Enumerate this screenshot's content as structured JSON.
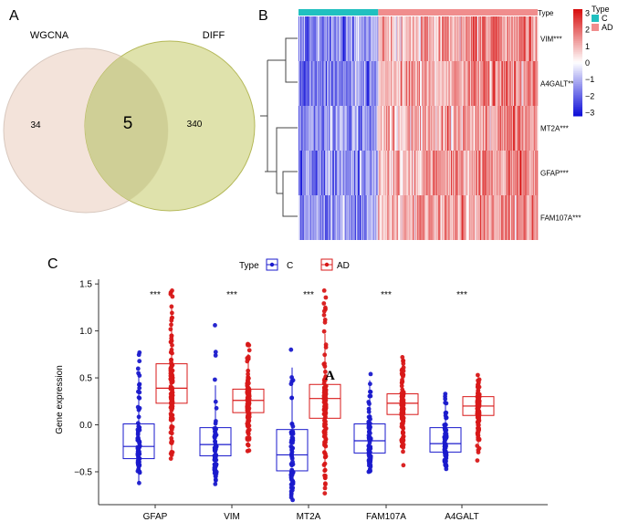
{
  "panels": {
    "a_label": "A",
    "b_label": "B",
    "c_label": "C",
    "annotation": "A"
  },
  "venn": {
    "left_set": "WGCNA",
    "right_set": "DIFF",
    "left_only": "34",
    "intersection": "5",
    "right_only": "340",
    "left_color": "#f3e3da",
    "right_color": "#d9dd9e",
    "overlap_color": "#cfcf96"
  },
  "heatmap": {
    "type_row_label": "Type",
    "genes": [
      "VIM***",
      "A4GALT***",
      "MT2A***",
      "GFAP***",
      "FAM107A***"
    ],
    "n_control": 90,
    "n_ad": 180,
    "type_colors": {
      "C": "#20c0c0",
      "AD": "#f08d8d"
    },
    "colorbar": {
      "min": -3,
      "max": 3,
      "ticks": [
        "3",
        "2",
        "1",
        "0",
        "−1",
        "−2",
        "−3"
      ],
      "low_color": "#1010d8",
      "mid_color": "#ffffff",
      "high_color": "#d81010"
    },
    "legend_title": "Type",
    "legend_items": [
      "C",
      "AD"
    ]
  },
  "chart_data": {
    "type": "box",
    "title": "",
    "xlabel": "",
    "ylabel": "Gene expression",
    "ylim": [
      -0.85,
      1.55
    ],
    "yticks": [
      -0.5,
      0.0,
      0.5,
      1.0,
      1.5
    ],
    "ytick_labels": [
      "−0.5",
      "0.0",
      "0.5",
      "1.0",
      "1.5"
    ],
    "categories": [
      "GFAP",
      "VIM",
      "MT2A",
      "FAM107A",
      "A4GALT"
    ],
    "significance": [
      "***",
      "***",
      "***",
      "***",
      "***"
    ],
    "legend_title": "Type",
    "series": [
      {
        "name": "C",
        "color": "#1a1acc",
        "boxes": [
          {
            "q1": -0.36,
            "median": -0.23,
            "q3": 0.01,
            "low": -0.62,
            "high": 0.77
          },
          {
            "q1": -0.33,
            "median": -0.21,
            "q3": -0.03,
            "low": -0.63,
            "high": 1.06
          },
          {
            "q1": -0.49,
            "median": -0.32,
            "q3": -0.05,
            "low": -0.8,
            "high": 0.8
          },
          {
            "q1": -0.3,
            "median": -0.17,
            "q3": 0.01,
            "low": -0.5,
            "high": 0.54
          },
          {
            "q1": -0.29,
            "median": -0.2,
            "q3": -0.03,
            "low": -0.47,
            "high": 0.33
          }
        ]
      },
      {
        "name": "AD",
        "color": "#d81818",
        "boxes": [
          {
            "q1": 0.23,
            "median": 0.39,
            "q3": 0.65,
            "low": -0.36,
            "high": 1.43
          },
          {
            "q1": 0.13,
            "median": 0.26,
            "q3": 0.38,
            "low": -0.28,
            "high": 0.86
          },
          {
            "q1": 0.07,
            "median": 0.28,
            "q3": 0.43,
            "low": -0.73,
            "high": 1.43
          },
          {
            "q1": 0.11,
            "median": 0.23,
            "q3": 0.33,
            "low": -0.43,
            "high": 0.72
          },
          {
            "q1": 0.1,
            "median": 0.2,
            "q3": 0.3,
            "low": -0.38,
            "high": 0.53
          }
        ]
      }
    ]
  }
}
